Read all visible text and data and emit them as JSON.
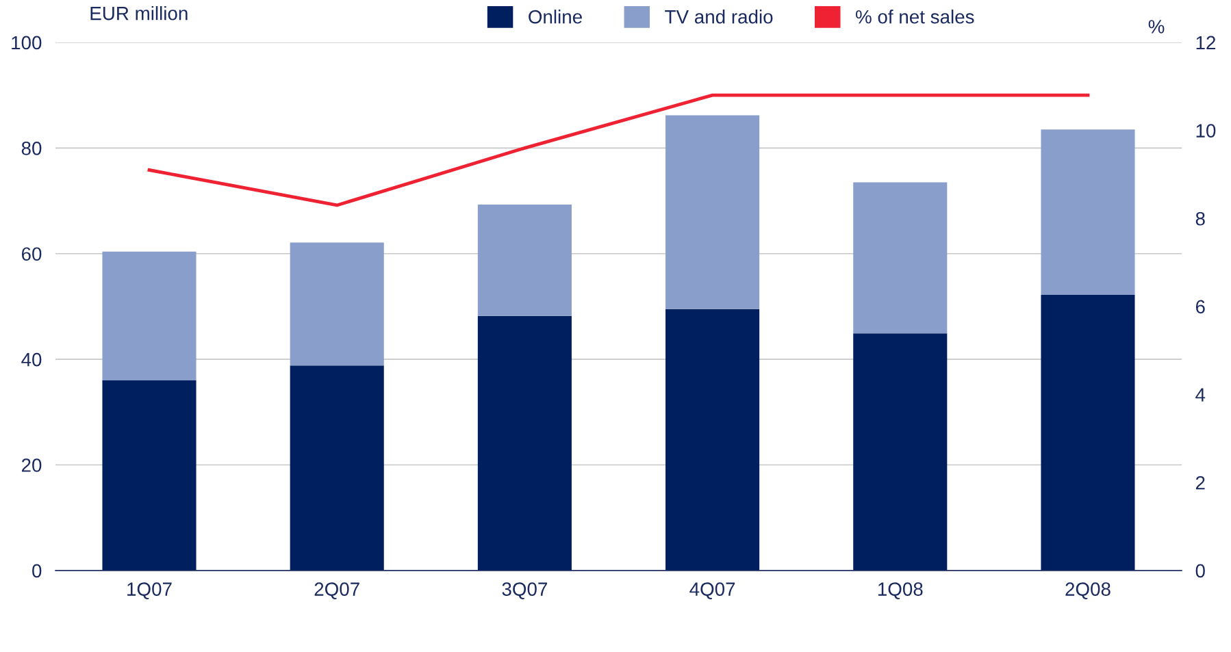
{
  "chart_data": {
    "type": "bar",
    "stacked": true,
    "categories": [
      "1Q07",
      "2Q07",
      "3Q07",
      "4Q07",
      "1Q08",
      "2Q08"
    ],
    "ylabel": "EUR million",
    "y2label": "%",
    "series": [
      {
        "name": "Online",
        "color": "#001f5f",
        "values": [
          36.0,
          38.8,
          48.2,
          49.5,
          44.9,
          52.2
        ]
      },
      {
        "name": "TV and radio",
        "color": "#8a9ecb",
        "values": [
          24.4,
          23.3,
          21.1,
          36.7,
          28.6,
          31.3
        ]
      },
      {
        "name": "% of net sales",
        "type": "line",
        "axis": "y2",
        "color": "#ee2233",
        "values": [
          9.1,
          8.3,
          9.6,
          10.8,
          10.8,
          10.8
        ]
      }
    ],
    "ylim": [
      0,
      100
    ],
    "yticks": [
      0,
      20,
      40,
      60,
      80,
      100
    ],
    "y2lim": [
      0,
      12
    ],
    "y2ticks": [
      0,
      2,
      4,
      6,
      8,
      10,
      12
    ],
    "grid": "y",
    "legend": "top",
    "line_style": "solid",
    "marker": "none"
  }
}
